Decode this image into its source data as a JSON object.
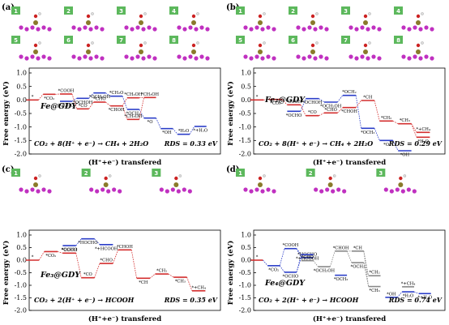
{
  "colors": {
    "red": "#d32f2f",
    "blue": "#2b3ec8",
    "rds_blue": "#2b3ec8",
    "rds_red": "#d32f2f",
    "badge": "#5cb85c",
    "atom_purple": "#c030c0",
    "atom_metal": "#8a7a2a"
  },
  "y_ticks": [
    "1.0",
    "0.5",
    "0.0",
    "-0.5",
    "-1.0",
    "-1.5",
    "-2.0"
  ],
  "chart_data": [
    {
      "panel": "(a)",
      "type": "line",
      "step_style": "free-energy-diagram",
      "catalyst": "Fe@GDY",
      "equation": "CO₂ + 8(H⁺ + e⁻) → CH₄ + 2H₂O",
      "rds": "RDS = 0.33 eV",
      "rds_color": "blue",
      "ylabel": "Free energy (eV)",
      "xlabel": "(H⁺+e⁻) transfered",
      "ylim": [
        -2.0,
        1.0
      ],
      "badges": [
        "1",
        "2",
        "3",
        "4",
        "5",
        "6",
        "7",
        "8"
      ],
      "levels": [
        {
          "x": 0,
          "y": 0.0,
          "c": "red",
          "label": "*"
        },
        {
          "x": 1,
          "y": 0.21,
          "c": "red",
          "label": "*CO₂"
        },
        {
          "x": 2,
          "y": 0.22,
          "c": "red",
          "label": "*COOH"
        },
        {
          "x": 2,
          "y": -0.05,
          "c": "blue",
          "label": "*OCHO"
        },
        {
          "x": 3,
          "y": -0.33,
          "c": "red",
          "label": "*CO"
        },
        {
          "x": 3,
          "y": 0.06,
          "c": "blue",
          "label": "*OCHOH"
        },
        {
          "x": 4,
          "y": -0.08,
          "c": "red",
          "label": "*CHO"
        },
        {
          "x": 4,
          "y": 0.26,
          "c": "blue",
          "label": "*OCH₂OH"
        },
        {
          "x": 5,
          "y": 0.14,
          "c": "blue",
          "label": "*CH₂O"
        },
        {
          "x": 5,
          "y": -0.22,
          "c": "red",
          "label": "*CHOH"
        },
        {
          "x": 6,
          "y": 0.08,
          "c": "red",
          "label": "*CH₂OH"
        },
        {
          "x": 6,
          "y": -0.35,
          "c": "blue",
          "label": "*OCH₃"
        },
        {
          "x": 6,
          "y": -0.72,
          "c": "red",
          "label": "*CH₃OH"
        },
        {
          "x": 7,
          "y": -0.67,
          "c": "blue",
          "label": "*O"
        },
        {
          "x": 7,
          "y": 0.09,
          "c": "red",
          "label": "*CH₃OH"
        },
        {
          "x": 8,
          "y": -1.06,
          "c": "blue",
          "label": "*OH"
        },
        {
          "x": 9,
          "y": -1.27,
          "c": "blue",
          "label": "*H₂O"
        },
        {
          "x": 10,
          "y": -0.98,
          "c": "blue",
          "label": "*+H₂O"
        }
      ]
    },
    {
      "panel": "(b)",
      "type": "line",
      "step_style": "free-energy-diagram",
      "catalyst": "Fe₂@GDY",
      "equation": "CO₂ + 8(H⁺ + e⁻) → CH₄ + 2H₂O",
      "rds": "RDS = 0.29 eV",
      "rds_color": "red",
      "ylabel": "Free energy (eV)",
      "xlabel": "(H⁺+e⁻) transfered",
      "ylim": [
        -2.0,
        1.0
      ],
      "badges": [
        "1",
        "2",
        "3",
        "4",
        "5",
        "6",
        "7",
        "8"
      ],
      "levels": [
        {
          "x": 0,
          "y": 0.0,
          "c": "red",
          "label": "*"
        },
        {
          "x": 1,
          "y": 0.02,
          "c": "red",
          "label": "*CO₂"
        },
        {
          "x": 2,
          "y": -0.18,
          "c": "red",
          "label": "*COOH"
        },
        {
          "x": 2,
          "y": -0.42,
          "c": "blue",
          "label": "*OCHO"
        },
        {
          "x": 3,
          "y": -0.58,
          "c": "red",
          "label": "*CO"
        },
        {
          "x": 3,
          "y": 0.05,
          "c": "blue",
          "label": "*OCHOH"
        },
        {
          "x": 4,
          "y": -0.48,
          "c": "red",
          "label": "*CHO"
        },
        {
          "x": 4,
          "y": -0.08,
          "c": "blue",
          "label": "*OCH₂OH"
        },
        {
          "x": 5,
          "y": 0.17,
          "c": "blue",
          "label": "*OCH₂"
        },
        {
          "x": 5,
          "y": -0.28,
          "c": "red",
          "label": "*CHOH"
        },
        {
          "x": 6,
          "y": -0.02,
          "c": "red",
          "label": "*CH"
        },
        {
          "x": 6,
          "y": -1.05,
          "c": "blue",
          "label": "*OCH₃"
        },
        {
          "x": 7,
          "y": -0.78,
          "c": "red",
          "label": "*CH₂"
        },
        {
          "x": 7,
          "y": -1.5,
          "c": "blue",
          "label": "*O"
        },
        {
          "x": 8,
          "y": -0.88,
          "c": "red",
          "label": "*CH₃"
        },
        {
          "x": 8,
          "y": -1.88,
          "c": "blue",
          "label": "*OH"
        },
        {
          "x": 9,
          "y": -1.2,
          "c": "red",
          "label": "*+CH₄"
        },
        {
          "x": 9,
          "y": -1.38,
          "c": "red",
          "label": "*H₂O"
        }
      ]
    },
    {
      "panel": "(c)",
      "type": "line",
      "step_style": "free-energy-diagram",
      "catalyst": "Fe₃@GDY",
      "equation": "CO₂ + 2(H⁺ + e⁻) → HCOOH",
      "rds": "RDS = 0.35 eV",
      "rds_color": "blue",
      "ylabel": "Free energy (eV)",
      "xlabel": "(H⁺+e⁻) transfered",
      "ylim": [
        -2.0,
        1.0
      ],
      "badges": [
        "1",
        "2",
        "3"
      ],
      "levels": [
        {
          "x": 0,
          "y": 0.0,
          "c": "red",
          "label": "*"
        },
        {
          "x": 1,
          "y": 0.34,
          "c": "red",
          "label": "*CO₂"
        },
        {
          "x": 2,
          "y": 0.28,
          "c": "red",
          "label": "*COOH"
        },
        {
          "x": 2,
          "y": 0.58,
          "c": "blue",
          "label": "*OCHO"
        },
        {
          "x": 3,
          "y": -0.7,
          "c": "red",
          "label": "*CO"
        },
        {
          "x": 3,
          "y": 0.85,
          "c": "blue",
          "label": "*HOCHO"
        },
        {
          "x": 4,
          "y": -0.13,
          "c": "red",
          "label": "*CHO"
        },
        {
          "x": 4,
          "y": 0.62,
          "c": "blue",
          "label": "*+HCOOH"
        },
        {
          "x": 5,
          "y": 0.41,
          "c": "red",
          "label": "*CHOH"
        },
        {
          "x": 6,
          "y": -0.72,
          "c": "red",
          "label": "*CH"
        },
        {
          "x": 7,
          "y": -0.55,
          "c": "red",
          "label": "*CH₂"
        },
        {
          "x": 8,
          "y": -0.68,
          "c": "red",
          "label": "*CH₃"
        },
        {
          "x": 9,
          "y": -1.22,
          "c": "red",
          "label": "*+CH₄"
        }
      ]
    },
    {
      "panel": "(d)",
      "type": "line",
      "step_style": "free-energy-diagram",
      "catalyst": "Fe₄@GDY",
      "equation": "CO₂ + 2(H⁺ + e⁻) → HCOOH",
      "rds": "RDS = 0.74 eV",
      "rds_color": "blue",
      "ylabel": "Free energy (eV)",
      "xlabel": "(H⁺+e⁻) transfered",
      "ylim": [
        -2.0,
        1.0
      ],
      "badges": [
        "1",
        "2",
        "3"
      ],
      "levels": [
        {
          "x": 0,
          "y": 0.0,
          "c": "red",
          "label": "*"
        },
        {
          "x": 1,
          "y": -0.22,
          "c": "blue",
          "label": "*CO₂"
        },
        {
          "x": 2,
          "y": 0.46,
          "c": "blue",
          "label": "*COOH"
        },
        {
          "x": 2,
          "y": -0.48,
          "c": "blue",
          "label": "*OCHO"
        },
        {
          "x": 3,
          "y": 0.1,
          "c": "blue",
          "label": "*HOCHO"
        },
        {
          "x": 3,
          "y": 0.22,
          "c": "blue",
          "label": "*+HCOOH"
        },
        {
          "x": 3,
          "y": -0.02,
          "c": "gray",
          "label": "*CHO"
        },
        {
          "x": 4,
          "y": -0.26,
          "c": "gray",
          "label": "*OCH₂OH"
        },
        {
          "x": 5,
          "y": 0.36,
          "c": "gray",
          "label": "*CHOH"
        },
        {
          "x": 5,
          "y": -0.6,
          "c": "blue",
          "label": "*OCH₃"
        },
        {
          "x": 6,
          "y": 0.36,
          "c": "gray",
          "label": "*CH"
        },
        {
          "x": 6,
          "y": -0.1,
          "c": "gray",
          "label": "*OCH₂"
        },
        {
          "x": 7,
          "y": -0.62,
          "c": "gray",
          "label": "*CH₂"
        },
        {
          "x": 7,
          "y": -1.05,
          "c": "gray",
          "label": "*CH₃"
        },
        {
          "x": 8,
          "y": -1.48,
          "c": "blue",
          "label": "*OH"
        },
        {
          "x": 9,
          "y": -1.26,
          "c": "blue",
          "label": "*H₂O"
        },
        {
          "x": 9,
          "y": -1.06,
          "c": "gray",
          "label": "*+CH₄"
        },
        {
          "x": 10,
          "y": -1.33,
          "c": "blue",
          "label": "*+H₂O"
        }
      ]
    }
  ]
}
